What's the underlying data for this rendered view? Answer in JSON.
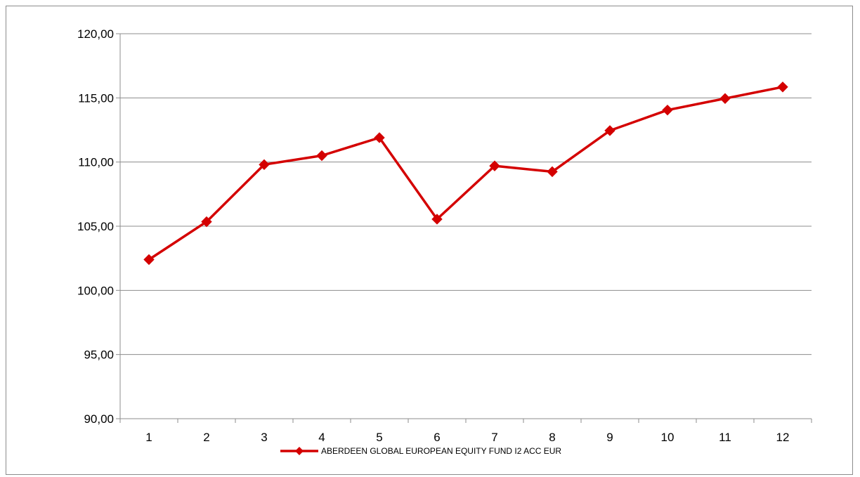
{
  "chart_data": {
    "type": "line",
    "title": "",
    "xlabel": "",
    "ylabel": "",
    "categories": [
      "1",
      "2",
      "3",
      "4",
      "5",
      "6",
      "7",
      "8",
      "9",
      "10",
      "11",
      "12"
    ],
    "ylim": [
      90,
      120
    ],
    "yticks": [
      90,
      95,
      100,
      105,
      110,
      115,
      120
    ],
    "ytick_labels": [
      "90,00",
      "95,00",
      "100,00",
      "105,00",
      "110,00",
      "115,00",
      "120,00"
    ],
    "grid": true,
    "legend_position": "bottom",
    "series": [
      {
        "name": "ABERDEEN GLOBAL EUROPEAN EQUITY FUND I2 ACC EUR",
        "color": "#d40000",
        "marker": "diamond",
        "values": [
          102.4,
          105.35,
          109.8,
          110.5,
          111.9,
          105.55,
          109.7,
          109.25,
          112.45,
          114.05,
          114.95,
          115.85
        ]
      }
    ]
  }
}
